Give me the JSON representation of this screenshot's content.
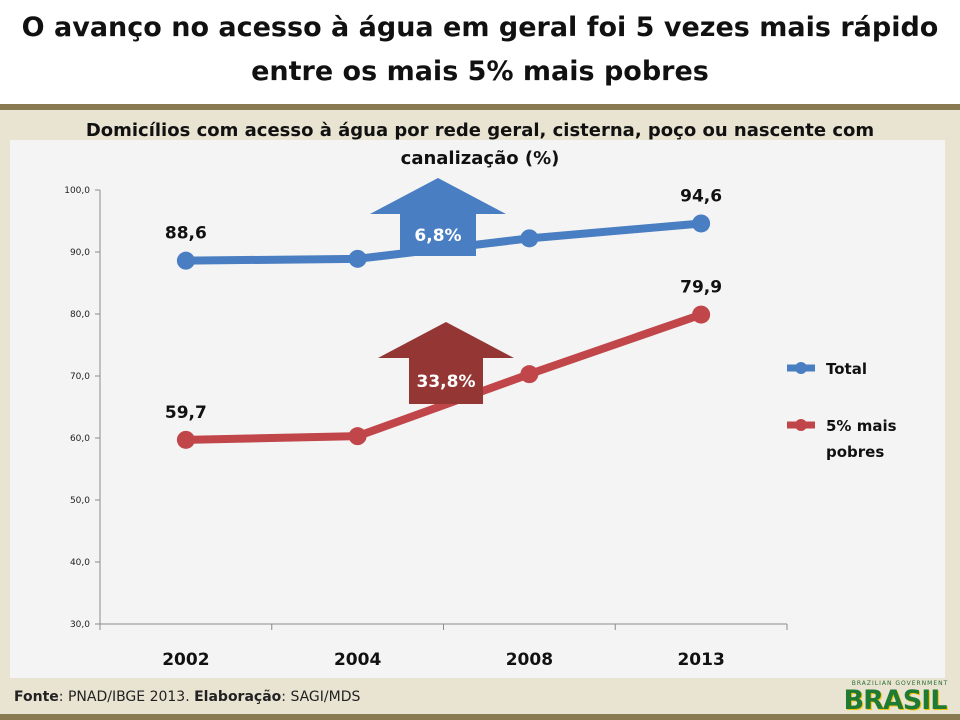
{
  "slide": {
    "title": "O avanço no acesso à água em geral foi 5 vezes mais rápido entre os mais 5% mais pobres",
    "source_label": "Fonte",
    "source_text": ": PNAD/IBGE 2013. ",
    "elaboration_label": "Elaboração",
    "elaboration_text": ": SAGI/MDS",
    "logo_small": "BRAZILIAN GOVERNMENT",
    "logo_main": "BRASIL"
  },
  "chart_data": {
    "type": "line",
    "title": "Domicílios com acesso à água por rede geral, cisterna, poço ou nascente com canalização (%)",
    "categories": [
      "2002",
      "2004",
      "2008",
      "2013"
    ],
    "ylim": [
      30,
      100
    ],
    "yticks": [
      "30,0",
      "40,0",
      "50,0",
      "60,0",
      "70,0",
      "80,0",
      "90,0",
      "100,0"
    ],
    "grid": false,
    "legend_position": "right",
    "series": [
      {
        "name": "Total",
        "values": [
          88.6,
          88.9,
          92.2,
          94.6
        ],
        "data_labels": [
          "88,6",
          "",
          "",
          "94,6"
        ],
        "color": "#4a7ec2",
        "growth_label": "6,8%",
        "arrow_color": "#4a7ec2"
      },
      {
        "name": "5% mais pobres",
        "values": [
          59.7,
          60.3,
          70.3,
          79.9
        ],
        "data_labels": [
          "59,7",
          "",
          "",
          "79,9"
        ],
        "color": "#c0464a",
        "growth_label": "33,8%",
        "arrow_color": "#943634"
      }
    ]
  }
}
